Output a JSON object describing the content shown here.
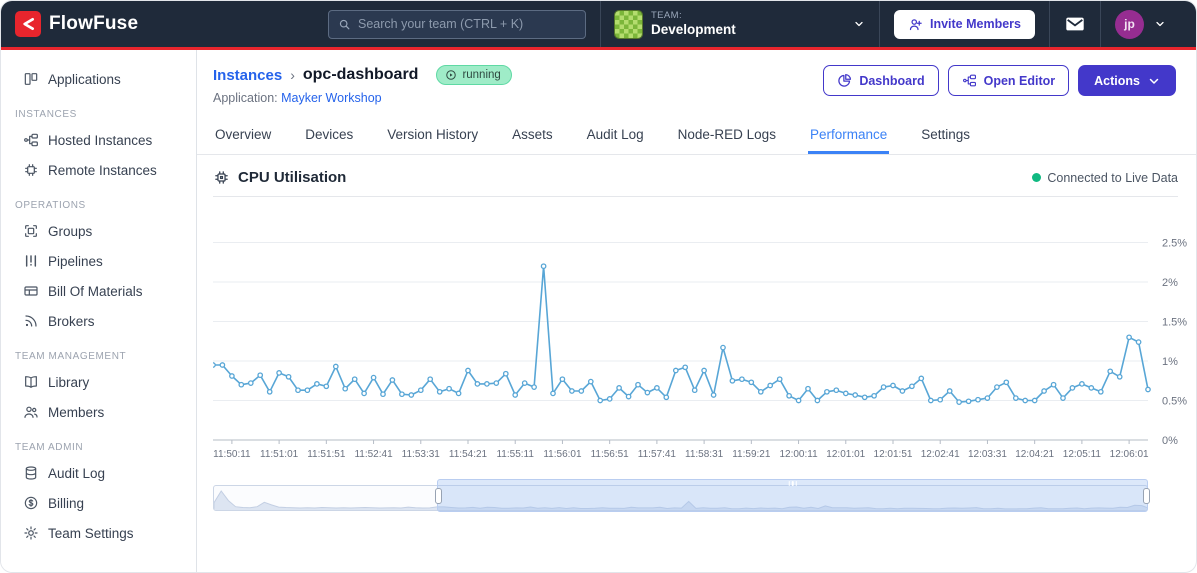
{
  "colors": {
    "navbar_bg": "#1f2a3a",
    "brand_red": "#e8252d",
    "indigo": "#4338ca",
    "link_blue": "#2563eb",
    "active_tab_blue": "#3b82f6",
    "badge_green_bg": "#9fecc8",
    "live_dot_green": "#10b981",
    "avatar_purple": "#962d91"
  },
  "navbar": {
    "brand": "FlowFuse",
    "search_placeholder": "Search your team (CTRL + K)",
    "team_label": "TEAM:",
    "team_name": "Development",
    "invite_button": "Invite Members",
    "avatar_initials": "jp"
  },
  "sidebar": {
    "top_items": [
      {
        "label": "Applications"
      }
    ],
    "sections": [
      {
        "title": "INSTANCES",
        "items": [
          {
            "label": "Hosted Instances"
          },
          {
            "label": "Remote Instances"
          }
        ]
      },
      {
        "title": "OPERATIONS",
        "items": [
          {
            "label": "Groups"
          },
          {
            "label": "Pipelines"
          },
          {
            "label": "Bill Of Materials"
          },
          {
            "label": "Brokers"
          }
        ]
      },
      {
        "title": "TEAM MANAGEMENT",
        "items": [
          {
            "label": "Library"
          },
          {
            "label": "Members"
          }
        ]
      },
      {
        "title": "TEAM ADMIN",
        "items": [
          {
            "label": "Audit Log"
          },
          {
            "label": "Billing"
          },
          {
            "label": "Team Settings"
          }
        ]
      }
    ]
  },
  "header": {
    "breadcrumb_root": "Instances",
    "breadcrumb_sep": "›",
    "breadcrumb_current": "opc-dashboard",
    "status_badge": "running",
    "application_label": "Application:",
    "application_name": "Mayker Workshop",
    "dashboard_button": "Dashboard",
    "open_editor_button": "Open Editor",
    "actions_button": "Actions"
  },
  "tabs": {
    "items": [
      {
        "label": "Overview"
      },
      {
        "label": "Devices"
      },
      {
        "label": "Version History"
      },
      {
        "label": "Assets"
      },
      {
        "label": "Audit Log"
      },
      {
        "label": "Node-RED Logs"
      },
      {
        "label": "Performance"
      },
      {
        "label": "Settings"
      }
    ],
    "active": "Performance"
  },
  "panel": {
    "title": "CPU Utilisation",
    "live_status": "Connected to Live Data"
  },
  "chart_data": {
    "type": "line",
    "title": "CPU Utilisation",
    "unit": "%",
    "line_color": "#58a6d6",
    "grid_color": "#eaedf1",
    "axis_color": "#b6bcc6",
    "ylim": [
      0,
      2.95
    ],
    "y_grid": [
      {
        "v": 0,
        "label": "0%"
      },
      {
        "v": 0.5,
        "label": "0.5%"
      },
      {
        "v": 1,
        "label": "1%"
      },
      {
        "v": 1.5,
        "label": "1.5%"
      },
      {
        "v": 2,
        "label": "2%"
      },
      {
        "v": 2.5,
        "label": "2.5%"
      }
    ],
    "x_start_time": "11:49:51",
    "x_interval_seconds": 10,
    "x_first_label_index": 2,
    "x_label_every": 5,
    "x_tick_labels": [
      "11:50:11",
      "11:51:01",
      "11:51:51",
      "11:52:41",
      "11:53:31",
      "11:54:21",
      "11:55:11",
      "11:56:01",
      "11:56:51",
      "11:57:41",
      "11:58:31",
      "11:59:21",
      "12:00:11",
      "12:01:01",
      "12:01:51",
      "12:02:41",
      "12:03:31",
      "12:04:21",
      "12:05:11",
      "12:06:01"
    ],
    "values": [
      0.95,
      0.95,
      0.81,
      0.7,
      0.72,
      0.82,
      0.61,
      0.85,
      0.8,
      0.63,
      0.63,
      0.71,
      0.68,
      0.93,
      0.65,
      0.77,
      0.59,
      0.79,
      0.58,
      0.76,
      0.58,
      0.57,
      0.63,
      0.77,
      0.61,
      0.65,
      0.59,
      0.88,
      0.71,
      0.71,
      0.72,
      0.84,
      0.57,
      0.72,
      0.67,
      2.2,
      0.59,
      0.77,
      0.62,
      0.62,
      0.74,
      0.5,
      0.52,
      0.66,
      0.55,
      0.7,
      0.6,
      0.66,
      0.54,
      0.88,
      0.92,
      0.63,
      0.88,
      0.57,
      1.17,
      0.75,
      0.77,
      0.73,
      0.61,
      0.69,
      0.77,
      0.56,
      0.5,
      0.65,
      0.5,
      0.61,
      0.63,
      0.59,
      0.57,
      0.54,
      0.56,
      0.67,
      0.69,
      0.62,
      0.68,
      0.78,
      0.5,
      0.51,
      0.62,
      0.48,
      0.49,
      0.51,
      0.53,
      0.67,
      0.73,
      0.53,
      0.5,
      0.5,
      0.62,
      0.7,
      0.53,
      0.66,
      0.71,
      0.66,
      0.61,
      0.87,
      0.8,
      1.3,
      1.24,
      0.64
    ],
    "brush": {
      "selection_start_pct": 24,
      "selection_end_pct": 100,
      "preview_fill": "#dde5f2",
      "preview_stroke": "#c3cfe3",
      "preview_lead_values": [
        1.9,
        4.6,
        2.4,
        1.0,
        0.8,
        0.75,
        1.0,
        2.0,
        1.4,
        0.9,
        0.8,
        0.75,
        0.7,
        0.75,
        0.7,
        0.8,
        0.75,
        0.7,
        0.75,
        0.7,
        0.75,
        0.8,
        0.75,
        0.7,
        0.72,
        0.75,
        0.7,
        0.9,
        0.75,
        0.7,
        0.72
      ]
    }
  }
}
